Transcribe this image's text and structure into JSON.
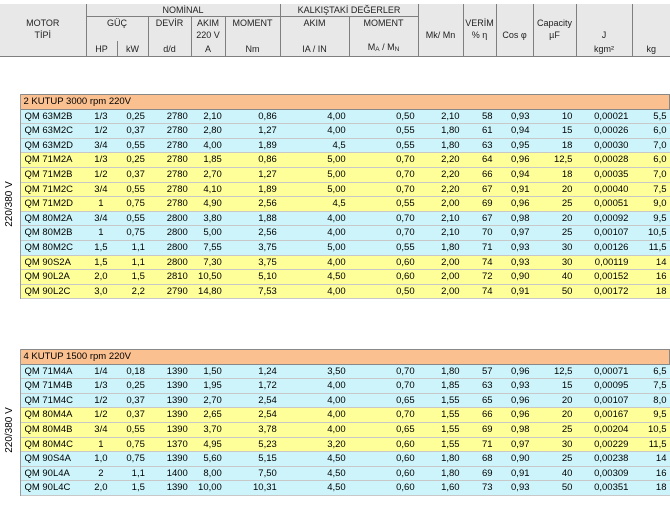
{
  "header": {
    "nominal": "NOMİNAL",
    "kalkis": "KALKIŞTAKİ DEĞERLER",
    "motor_line1": "MOTOR",
    "motor_line2": "TİPİ",
    "guc": "GÜÇ",
    "devir": "DEVİR",
    "akim": "AKIM",
    "volt": "220 V",
    "moment": "MOMENT",
    "k_akim": "AKIM",
    "k_moment": "MOMENT",
    "mk_mn": "Mk/ Mn",
    "verim": "VERİM",
    "verim_unit": "% η",
    "cos": "Cos φ",
    "capacity": "Capacity",
    "cap_unit": "µF",
    "j": "J",
    "j_unit": "kgm²",
    "kg": "kg",
    "hp": "HP",
    "kw": "kW",
    "dd": "d/d",
    "a": "A",
    "nm": "Nm",
    "ia_in": "IA / IN",
    "ma": "M",
    "ma_sub": "A",
    "mn_sep": " / M",
    "mn_sub": "N"
  },
  "sections": [
    {
      "title": "2 KUTUP 3000 rpm  220V",
      "side_label": "220/380 V",
      "rows": [
        {
          "c": "c",
          "m": "QM 63M2B",
          "hp": "1/3",
          "kw": "0,25",
          "rpm": "2780",
          "a": "2,10",
          "nm": "0,86",
          "ia": "4,00",
          "ma": "0,50",
          "mk": "2,10",
          "ef": "58",
          "cos": "0,93",
          "cap": "10",
          "j": "0,00021",
          "kg": "5,5"
        },
        {
          "c": "c",
          "m": "QM 63M2C",
          "hp": "1/2",
          "kw": "0,37",
          "rpm": "2780",
          "a": "2,80",
          "nm": "1,27",
          "ia": "4,00",
          "ma": "0,55",
          "mk": "1,80",
          "ef": "61",
          "cos": "0,94",
          "cap": "15",
          "j": "0,00026",
          "kg": "6,0"
        },
        {
          "c": "c",
          "m": "QM 63M2D",
          "hp": "3/4",
          "kw": "0,55",
          "rpm": "2780",
          "a": "4,00",
          "nm": "1,89",
          "ia": "4,5",
          "ma": "0,55",
          "mk": "1,80",
          "ef": "63",
          "cos": "0,95",
          "cap": "18",
          "j": "0,00030",
          "kg": "7,0"
        },
        {
          "c": "y",
          "m": "QM 71M2A",
          "hp": "1/3",
          "kw": "0,25",
          "rpm": "2780",
          "a": "1,85",
          "nm": "0,86",
          "ia": "5,00",
          "ma": "0,70",
          "mk": "2,20",
          "ef": "64",
          "cos": "0,96",
          "cap": "12,5",
          "j": "0,00028",
          "kg": "6,0"
        },
        {
          "c": "y",
          "m": "QM 71M2B",
          "hp": "1/2",
          "kw": "0,37",
          "rpm": "2780",
          "a": "2,70",
          "nm": "1,27",
          "ia": "5,00",
          "ma": "0,70",
          "mk": "2,20",
          "ef": "66",
          "cos": "0,94",
          "cap": "18",
          "j": "0,00035",
          "kg": "7,0"
        },
        {
          "c": "y",
          "m": "QM 71M2C",
          "hp": "3/4",
          "kw": "0,55",
          "rpm": "2780",
          "a": "4,10",
          "nm": "1,89",
          "ia": "5,00",
          "ma": "0,70",
          "mk": "2,20",
          "ef": "67",
          "cos": "0,91",
          "cap": "20",
          "j": "0,00040",
          "kg": "7,5"
        },
        {
          "c": "y",
          "m": "QM 71M2D",
          "hp": "1",
          "kw": "0,75",
          "rpm": "2780",
          "a": "4,90",
          "nm": "2,56",
          "ia": "4,5",
          "ma": "0,55",
          "mk": "2,00",
          "ef": "69",
          "cos": "0,96",
          "cap": "25",
          "j": "0,00051",
          "kg": "9,0"
        },
        {
          "c": "c",
          "m": "QM 80M2A",
          "hp": "3/4",
          "kw": "0,55",
          "rpm": "2800",
          "a": "3,80",
          "nm": "1,88",
          "ia": "4,00",
          "ma": "0,70",
          "mk": "2,10",
          "ef": "67",
          "cos": "0,98",
          "cap": "20",
          "j": "0,00092",
          "kg": "9,5"
        },
        {
          "c": "c",
          "m": "QM 80M2B",
          "hp": "1",
          "kw": "0,75",
          "rpm": "2800",
          "a": "5,00",
          "nm": "2,56",
          "ia": "4,00",
          "ma": "0,70",
          "mk": "2,10",
          "ef": "70",
          "cos": "0,97",
          "cap": "25",
          "j": "0,00107",
          "kg": "10,5"
        },
        {
          "c": "c",
          "m": "QM 80M2C",
          "hp": "1,5",
          "kw": "1,1",
          "rpm": "2800",
          "a": "7,55",
          "nm": "3,75",
          "ia": "5,00",
          "ma": "0,55",
          "mk": "1,80",
          "ef": "71",
          "cos": "0,93",
          "cap": "30",
          "j": "0,00126",
          "kg": "11,5"
        },
        {
          "c": "y",
          "m": "QM 90S2A",
          "hp": "1,5",
          "kw": "1,1",
          "rpm": "2800",
          "a": "7,30",
          "nm": "3,75",
          "ia": "4,00",
          "ma": "0,60",
          "mk": "2,00",
          "ef": "74",
          "cos": "0,93",
          "cap": "30",
          "j": "0,00119",
          "kg": "14"
        },
        {
          "c": "y",
          "m": "QM 90L2A",
          "hp": "2,0",
          "kw": "1,5",
          "rpm": "2810",
          "a": "10,50",
          "nm": "5,10",
          "ia": "4,50",
          "ma": "0,60",
          "mk": "2,00",
          "ef": "72",
          "cos": "0,90",
          "cap": "40",
          "j": "0,00152",
          "kg": "16"
        },
        {
          "c": "y",
          "m": "QM 90L2C",
          "hp": "3,0",
          "kw": "2,2",
          "rpm": "2790",
          "a": "14,80",
          "nm": "7,53",
          "ia": "4,00",
          "ma": "0,50",
          "mk": "2,00",
          "ef": "74",
          "cos": "0,91",
          "cap": "50",
          "j": "0,00172",
          "kg": "18"
        }
      ]
    },
    {
      "title": "4 KUTUP 1500 rpm  220V",
      "side_label": "220/380 V",
      "rows": [
        {
          "c": "c",
          "m": "QM 71M4A",
          "hp": "1/4",
          "kw": "0,18",
          "rpm": "1390",
          "a": "1,50",
          "nm": "1,24",
          "ia": "3,50",
          "ma": "0,70",
          "mk": "1,80",
          "ef": "57",
          "cos": "0,96",
          "cap": "12,5",
          "j": "0,00071",
          "kg": "6,5"
        },
        {
          "c": "c",
          "m": "QM 71M4B",
          "hp": "1/3",
          "kw": "0,25",
          "rpm": "1390",
          "a": "1,95",
          "nm": "1,72",
          "ia": "4,00",
          "ma": "0,70",
          "mk": "1,85",
          "ef": "63",
          "cos": "0,93",
          "cap": "15",
          "j": "0,00095",
          "kg": "7,5"
        },
        {
          "c": "c",
          "m": "QM 71M4C",
          "hp": "1/2",
          "kw": "0,37",
          "rpm": "1390",
          "a": "2,70",
          "nm": "2,54",
          "ia": "4,00",
          "ma": "0,65",
          "mk": "1,55",
          "ef": "65",
          "cos": "0,96",
          "cap": "20",
          "j": "0,00107",
          "kg": "8,0"
        },
        {
          "c": "y",
          "m": "QM 80M4A",
          "hp": "1/2",
          "kw": "0,37",
          "rpm": "1390",
          "a": "2,65",
          "nm": "2,54",
          "ia": "4,00",
          "ma": "0,70",
          "mk": "1,55",
          "ef": "66",
          "cos": "0,96",
          "cap": "20",
          "j": "0,00167",
          "kg": "9,5"
        },
        {
          "c": "y",
          "m": "QM 80M4B",
          "hp": "3/4",
          "kw": "0,55",
          "rpm": "1390",
          "a": "3,70",
          "nm": "3,78",
          "ia": "4,00",
          "ma": "0,65",
          "mk": "1,55",
          "ef": "69",
          "cos": "0,98",
          "cap": "25",
          "j": "0,00204",
          "kg": "10,5"
        },
        {
          "c": "y",
          "m": "QM 80M4C",
          "hp": "1",
          "kw": "0,75",
          "rpm": "1370",
          "a": "4,95",
          "nm": "5,23",
          "ia": "3,20",
          "ma": "0,60",
          "mk": "1,55",
          "ef": "71",
          "cos": "0,97",
          "cap": "30",
          "j": "0,00229",
          "kg": "11,5"
        },
        {
          "c": "c",
          "m": "QM 90S4A",
          "hp": "1,0",
          "kw": "0,75",
          "rpm": "1390",
          "a": "5,60",
          "nm": "5,15",
          "ia": "4,50",
          "ma": "0,60",
          "mk": "1,80",
          "ef": "68",
          "cos": "0,90",
          "cap": "25",
          "j": "0,00238",
          "kg": "14"
        },
        {
          "c": "c",
          "m": "QM 90L4A",
          "hp": "2",
          "kw": "1,1",
          "rpm": "1400",
          "a": "8,00",
          "nm": "7,50",
          "ia": "4,50",
          "ma": "0,60",
          "mk": "1,80",
          "ef": "69",
          "cos": "0,91",
          "cap": "40",
          "j": "0,00309",
          "kg": "16"
        },
        {
          "c": "c",
          "m": "QM 90L4C",
          "hp": "2,0",
          "kw": "1,5",
          "rpm": "1390",
          "a": "10,00",
          "nm": "10,31",
          "ia": "4,50",
          "ma": "0,60",
          "mk": "1,60",
          "ef": "73",
          "cos": "0,93",
          "cap": "50",
          "j": "0,00351",
          "kg": "18"
        }
      ]
    }
  ]
}
